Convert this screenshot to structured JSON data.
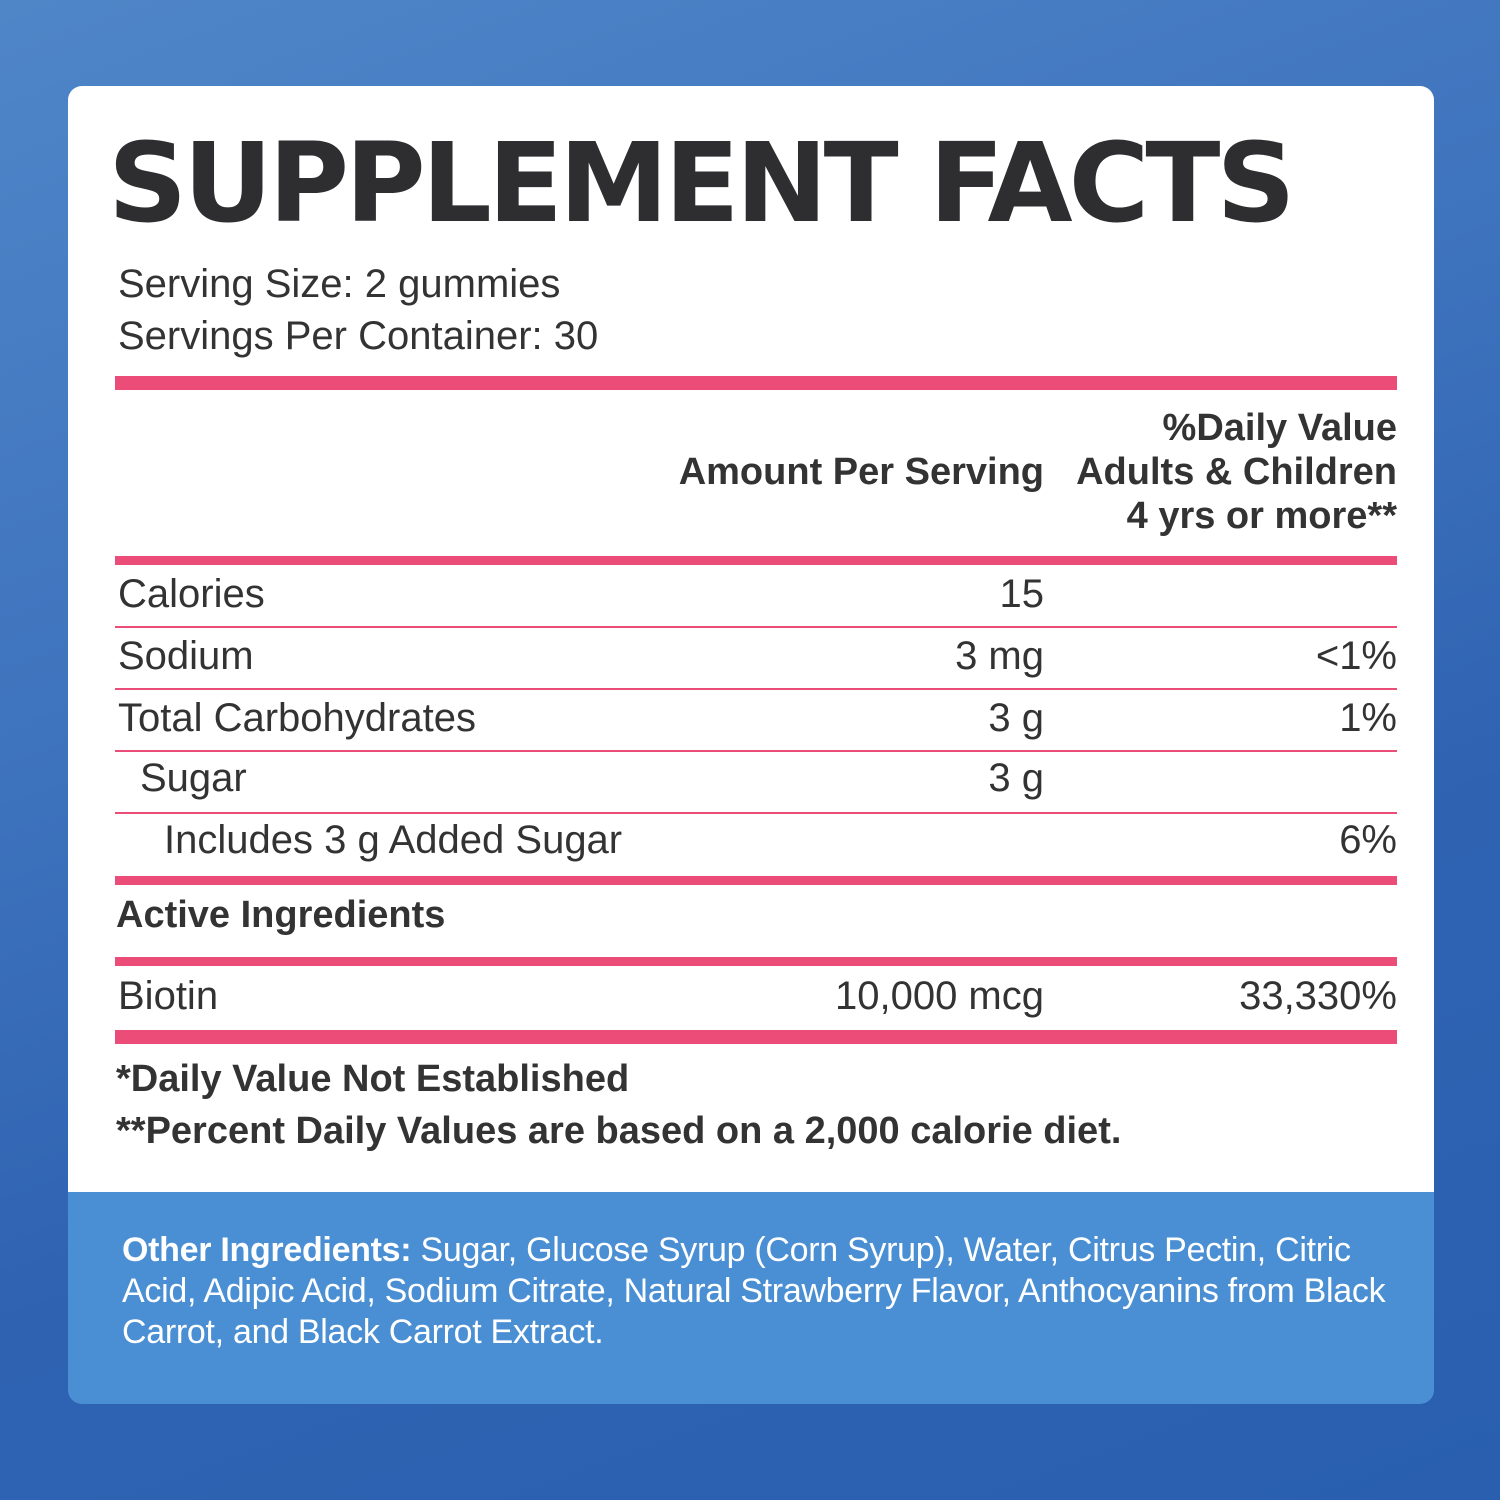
{
  "label": {
    "title": "SUPPLEMENT FACTS",
    "serving_size": "Serving Size: 2 gummies",
    "servings_per_container": "Servings Per Container: 30",
    "columns": {
      "amount": "Amount Per Serving",
      "daily_value": "%Daily Value Adults & Children 4 yrs or more**"
    },
    "nutrients": [
      {
        "name": "Calories",
        "amount": "15",
        "dv": ""
      },
      {
        "name": "Sodium",
        "amount": "3 mg",
        "dv": "<1%"
      },
      {
        "name": "Total Carbohydrates",
        "amount": "3 g",
        "dv": "1%"
      },
      {
        "name": "Sugar",
        "amount": "3 g",
        "dv": ""
      },
      {
        "name": "Includes 3 g Added Sugar",
        "amount": "",
        "dv": "6%"
      }
    ],
    "active_section": "Active Ingredients",
    "active": [
      {
        "name": "Biotin",
        "amount": "10,000 mcg",
        "dv": "33,330%"
      }
    ],
    "footnotes": [
      "*Daily Value Not Established",
      "**Percent Daily Values are based on a 2,000 calorie diet."
    ]
  },
  "other_ingredients": {
    "label": "Other Ingredients:",
    "text": "Sugar, Glucose Syrup (Corn Syrup), Water, Citrus Pectin, Citric Acid, Adipic Acid, Sodium Citrate, Natural Strawberry Flavor, Anthocyanins from Black Carrot, and Black Carrot Extract."
  },
  "colors": {
    "accent_rule": "#ec4d78",
    "text": "#333333",
    "panel_blue": "#4a8fd3",
    "background_blue": "#3f74be"
  }
}
